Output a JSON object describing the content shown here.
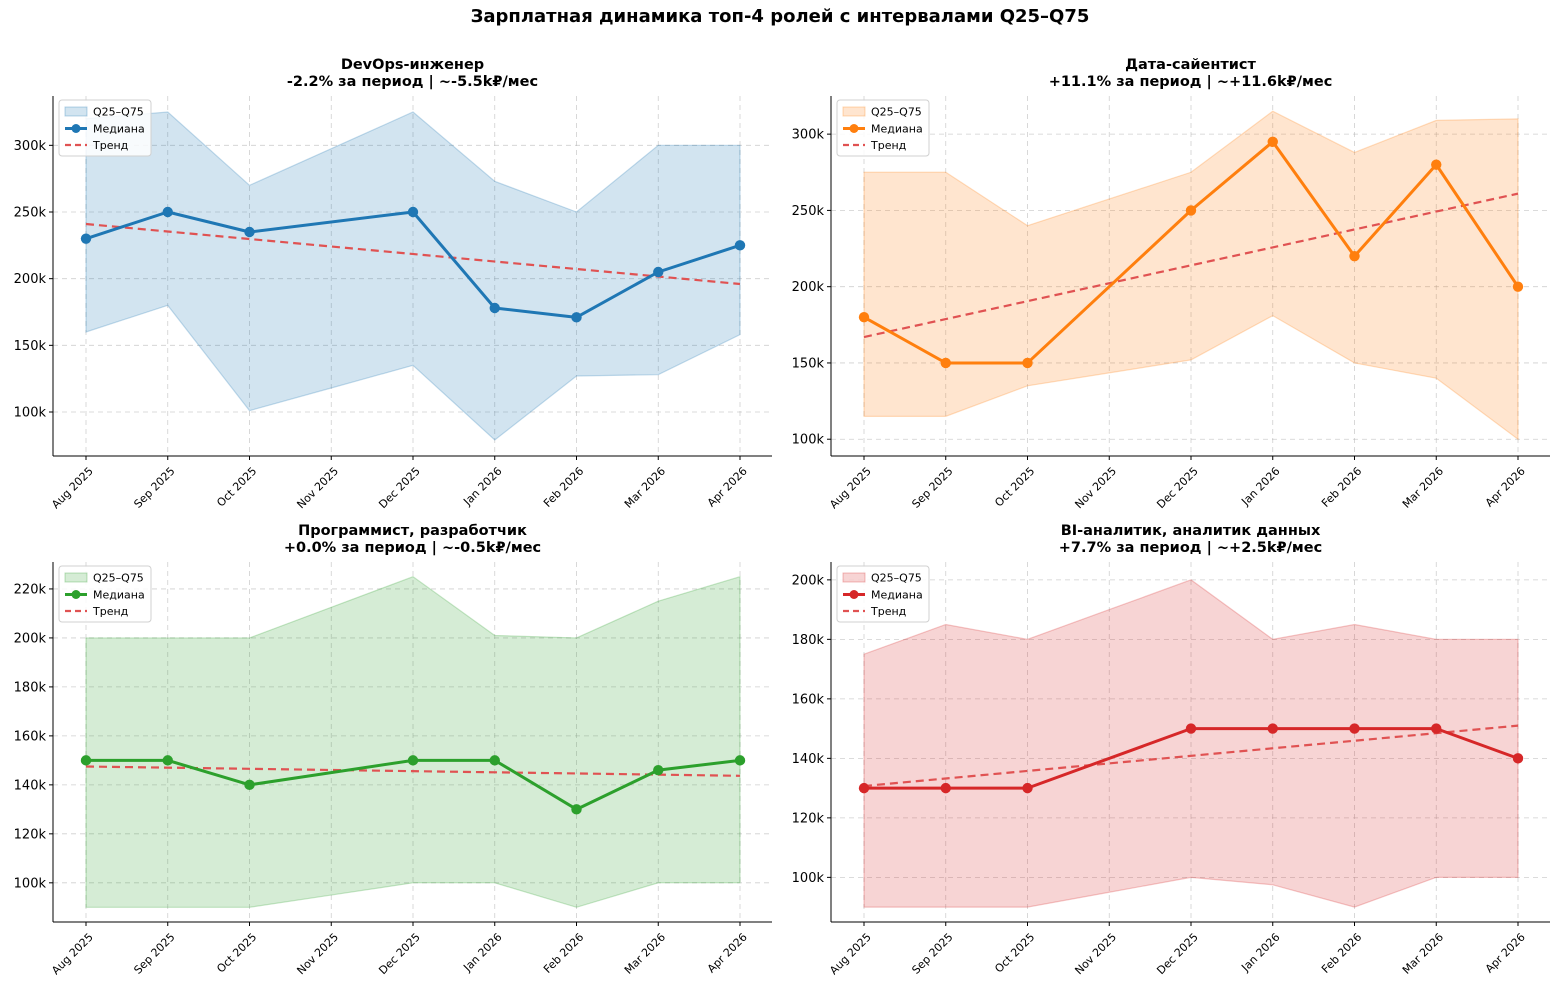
{
  "figure": {
    "title": "Зарплатная динамика топ-4 ролей с интервалами Q25–Q75"
  },
  "legend_labels": {
    "band": "Q25–Q75",
    "median": "Медиана",
    "trend": "Тренд"
  },
  "trend_color": "#e05252",
  "chart_data": [
    {
      "type": "line",
      "title": "DevOps-инженер",
      "subtitle": "-2.2% за период | ~-5.5k₽/мес",
      "color": "#1f77b4",
      "x": [
        "Aug 2025",
        "Sep 2025",
        "Oct 2025",
        "Nov 2025",
        "Dec 2025",
        "Jan 2026",
        "Feb 2026",
        "Mar 2026",
        "Apr 2026"
      ],
      "x_ticks": [
        "Aug 2025",
        "Sep 2025",
        "Oct 2025",
        "Nov 2025",
        "Dec 2025",
        "Jan 2026",
        "Feb 2026",
        "Mar 2026",
        "Apr 2026"
      ],
      "median": [
        230000,
        250000,
        235000,
        null,
        250000,
        178000,
        171000,
        205000,
        225000
      ],
      "q25": [
        160000,
        180000,
        101000,
        null,
        135000,
        79000,
        127000,
        128000,
        158000
      ],
      "q75": [
        320000,
        325000,
        270000,
        null,
        325000,
        273000,
        250000,
        300000,
        300000
      ],
      "trend": [
        241000,
        196000
      ],
      "ylim": [
        67000,
        337000
      ],
      "y_ticks": [
        100000,
        150000,
        200000,
        250000,
        300000
      ],
      "y_tick_labels": [
        "100k",
        "150k",
        "200k",
        "250k",
        "300k"
      ],
      "grid": true,
      "legend": "upper-left"
    },
    {
      "type": "line",
      "title": "Дата-сайентист",
      "subtitle": "+11.1% за период | ~+11.6k₽/мес",
      "color": "#ff7f0e",
      "x": [
        "Aug 2025",
        "Sep 2025",
        "Oct 2025",
        "Nov 2025",
        "Dec 2025",
        "Jan 2026",
        "Feb 2026",
        "Mar 2026",
        "Apr 2026"
      ],
      "x_ticks": [
        "Aug 2025",
        "Sep 2025",
        "Oct 2025",
        "Nov 2025",
        "Dec 2025",
        "Jan 2026",
        "Feb 2026",
        "Mar 2026",
        "Apr 2026"
      ],
      "median": [
        180000,
        150000,
        150000,
        null,
        250000,
        295000,
        220000,
        280000,
        200000
      ],
      "q25": [
        115000,
        115000,
        135000,
        null,
        152000,
        181000,
        150000,
        140000,
        100000
      ],
      "q75": [
        275000,
        275000,
        240000,
        null,
        275000,
        315000,
        288000,
        309000,
        310000
      ],
      "trend": [
        167000,
        261000
      ],
      "ylim": [
        89000,
        325000
      ],
      "y_ticks": [
        100000,
        150000,
        200000,
        250000,
        300000
      ],
      "y_tick_labels": [
        "100k",
        "150k",
        "200k",
        "250k",
        "300k"
      ],
      "grid": true,
      "legend": "upper-left"
    },
    {
      "type": "line",
      "title": "Программист, разработчик",
      "subtitle": "+0.0% за период | ~-0.5k₽/мес",
      "color": "#2ca02c",
      "x": [
        "Aug 2025",
        "Sep 2025",
        "Oct 2025",
        "Nov 2025",
        "Dec 2025",
        "Jan 2026",
        "Feb 2026",
        "Mar 2026",
        "Apr 2026"
      ],
      "x_ticks": [
        "Aug 2025",
        "Sep 2025",
        "Oct 2025",
        "Nov 2025",
        "Dec 2025",
        "Jan 2026",
        "Feb 2026",
        "Mar 2026",
        "Apr 2026"
      ],
      "median": [
        150000,
        150000,
        140000,
        null,
        150000,
        150000,
        130000,
        146000,
        150000
      ],
      "q25": [
        90000,
        90000,
        90000,
        null,
        100000,
        100000,
        90000,
        100000,
        100000
      ],
      "q75": [
        200000,
        200000,
        200000,
        null,
        225000,
        201000,
        200000,
        215000,
        225000
      ],
      "trend": [
        147500,
        143700
      ],
      "ylim": [
        84000,
        231000
      ],
      "y_ticks": [
        100000,
        120000,
        140000,
        160000,
        180000,
        200000,
        220000
      ],
      "y_tick_labels": [
        "100k",
        "120k",
        "140k",
        "160k",
        "180k",
        "200k",
        "220k"
      ],
      "grid": true,
      "legend": "upper-left"
    },
    {
      "type": "line",
      "title": "BI-аналитик, аналитик данных",
      "subtitle": "+7.7% за период | ~+2.5k₽/мес",
      "color": "#d62728",
      "x": [
        "Aug 2025",
        "Sep 2025",
        "Oct 2025",
        "Nov 2025",
        "Dec 2025",
        "Jan 2026",
        "Feb 2026",
        "Mar 2026",
        "Apr 2026"
      ],
      "x_ticks": [
        "Aug 2025",
        "Sep 2025",
        "Oct 2025",
        "Nov 2025",
        "Dec 2025",
        "Jan 2026",
        "Feb 2026",
        "Mar 2026",
        "Apr 2026"
      ],
      "median": [
        130000,
        130000,
        130000,
        null,
        150000,
        150000,
        150000,
        150000,
        140000
      ],
      "q25": [
        90000,
        90000,
        90000,
        null,
        100000,
        97500,
        90000,
        100000,
        100000
      ],
      "q75": [
        175000,
        185000,
        180000,
        null,
        200000,
        180000,
        185000,
        180000,
        180000
      ],
      "trend": [
        130700,
        151000
      ],
      "ylim": [
        85000,
        206000
      ],
      "y_ticks": [
        100000,
        120000,
        140000,
        160000,
        180000,
        200000
      ],
      "y_tick_labels": [
        "100k",
        "120k",
        "140k",
        "160k",
        "180k",
        "200k"
      ],
      "grid": true,
      "legend": "upper-left"
    }
  ]
}
